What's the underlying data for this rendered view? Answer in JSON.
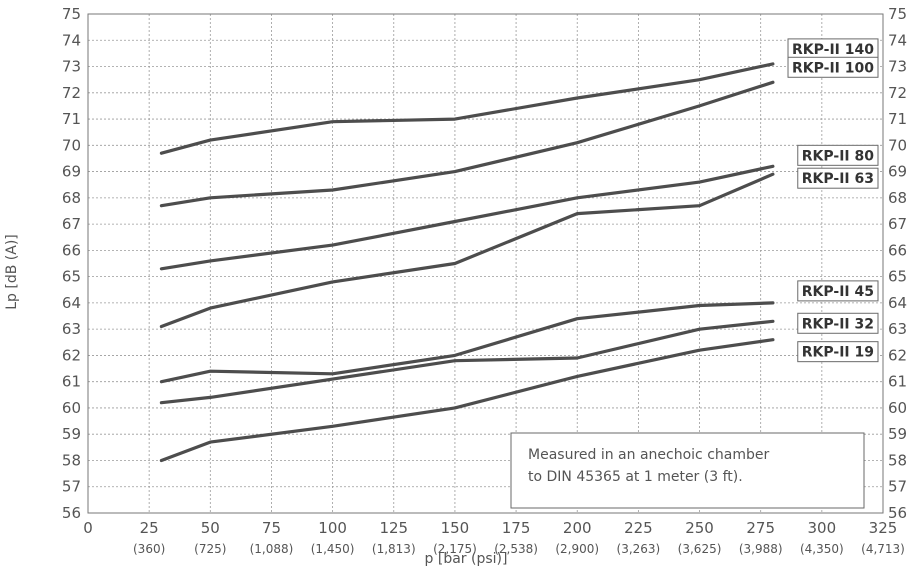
{
  "chart_data": {
    "type": "line",
    "xlabel": "p [bar (psi)]",
    "ylabel": "Lp [dB (A)]",
    "xlim": [
      0,
      325
    ],
    "ylim": [
      56,
      75
    ],
    "grid": true,
    "x_ticks": [
      0,
      25,
      50,
      75,
      100,
      125,
      150,
      175,
      200,
      225,
      250,
      275,
      300,
      325
    ],
    "x_tick_labels": [
      "0",
      "25",
      "50",
      "75",
      "100",
      "125",
      "150",
      "175",
      "200",
      "225",
      "250",
      "275",
      "300",
      "325"
    ],
    "x_sub_labels": [
      "",
      "(360)",
      "(725)",
      "(1,088)",
      "(1,450)",
      "(1,813)",
      "(2,175)",
      "(2,538)",
      "(2,900)",
      "(3,263)",
      "(3,625)",
      "(3,988)",
      "(4,350)",
      "(4,713)"
    ],
    "y_ticks": [
      56,
      57,
      58,
      59,
      60,
      61,
      62,
      63,
      64,
      65,
      66,
      67,
      68,
      69,
      70,
      71,
      72,
      73,
      74,
      75
    ],
    "y_tick_labels": [
      "56",
      "57",
      "58",
      "59",
      "60",
      "61",
      "62",
      "63",
      "64",
      "65",
      "66",
      "67",
      "68",
      "69",
      "70",
      "71",
      "72",
      "73",
      "74",
      "75"
    ],
    "series": [
      {
        "name": "RKP-II 140",
        "x": [
          30,
          50,
          100,
          150,
          200,
          250,
          280
        ],
        "y": [
          69.7,
          70.2,
          70.9,
          71.0,
          71.8,
          72.5,
          73.1
        ]
      },
      {
        "name": "RKP-II 100",
        "x": [
          30,
          50,
          100,
          150,
          200,
          250,
          280
        ],
        "y": [
          67.7,
          68.0,
          68.3,
          69.0,
          70.1,
          71.5,
          72.4
        ]
      },
      {
        "name": "RKP-II 80",
        "x": [
          30,
          50,
          100,
          150,
          200,
          250,
          280
        ],
        "y": [
          65.3,
          65.6,
          66.2,
          67.1,
          68.0,
          68.6,
          69.2
        ]
      },
      {
        "name": "RKP-II 63",
        "x": [
          30,
          50,
          100,
          150,
          200,
          250,
          280
        ],
        "y": [
          63.1,
          63.8,
          64.8,
          65.5,
          67.4,
          67.7,
          68.9
        ]
      },
      {
        "name": "RKP-II 45",
        "x": [
          30,
          50,
          100,
          150,
          200,
          250,
          280
        ],
        "y": [
          61.0,
          61.4,
          61.3,
          62.0,
          63.4,
          63.9,
          64.0
        ]
      },
      {
        "name": "RKP-II 32",
        "x": [
          30,
          50,
          100,
          150,
          200,
          250,
          280
        ],
        "y": [
          60.2,
          60.4,
          61.1,
          61.8,
          61.9,
          63.0,
          63.3
        ]
      },
      {
        "name": "RKP-II 19",
        "x": [
          30,
          50,
          100,
          150,
          200,
          250,
          280
        ],
        "y": [
          58.0,
          58.7,
          59.3,
          60.0,
          61.2,
          62.2,
          62.6
        ]
      }
    ],
    "annotations": [
      "Measured in an anechoic chamber",
      "to DIN 45365 at 1 meter (3 ft)."
    ],
    "colors": {
      "line": "#4d4d4d",
      "grid": "#9a9a9a",
      "text": "#555555"
    }
  }
}
